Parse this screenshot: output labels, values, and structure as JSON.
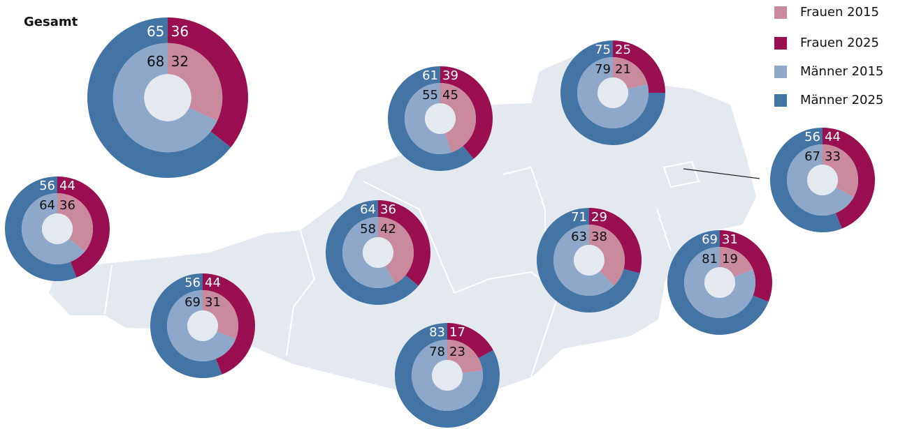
{
  "title": "Gesamt",
  "legend": [
    {
      "name": "Frauen 2015",
      "color": "#c98a9e"
    },
    {
      "name": "Frauen 2025",
      "color": "#990f50"
    },
    {
      "name": "Männer 2015",
      "color": "#8fa8c9"
    },
    {
      "name": "Männer 2025",
      "color": "#4274a6"
    }
  ],
  "donuts": [
    {
      "maenner_2025": 65,
      "frauen_2025": 36,
      "maenner_2015": 68,
      "frauen_2015": 32
    },
    {
      "maenner_2025": 56,
      "frauen_2025": 44,
      "maenner_2015": 64,
      "frauen_2015": 36
    },
    {
      "maenner_2025": 56,
      "frauen_2025": 44,
      "maenner_2015": 69,
      "frauen_2015": 31
    },
    {
      "maenner_2025": 64,
      "frauen_2025": 36,
      "maenner_2015": 58,
      "frauen_2015": 42
    },
    {
      "maenner_2025": 61,
      "frauen_2025": 39,
      "maenner_2015": 55,
      "frauen_2015": 45
    },
    {
      "maenner_2025": 75,
      "frauen_2025": 25,
      "maenner_2015": 79,
      "frauen_2015": 21
    },
    {
      "maenner_2025": 56,
      "frauen_2025": 44,
      "maenner_2015": 67,
      "frauen_2015": 33
    },
    {
      "maenner_2025": 71,
      "frauen_2025": 29,
      "maenner_2015": 63,
      "frauen_2015": 38
    },
    {
      "maenner_2025": 69,
      "frauen_2025": 31,
      "maenner_2015": 81,
      "frauen_2015": 19
    },
    {
      "maenner_2025": 83,
      "frauen_2025": 17,
      "maenner_2015": 78,
      "frauen_2015": 23
    }
  ]
}
